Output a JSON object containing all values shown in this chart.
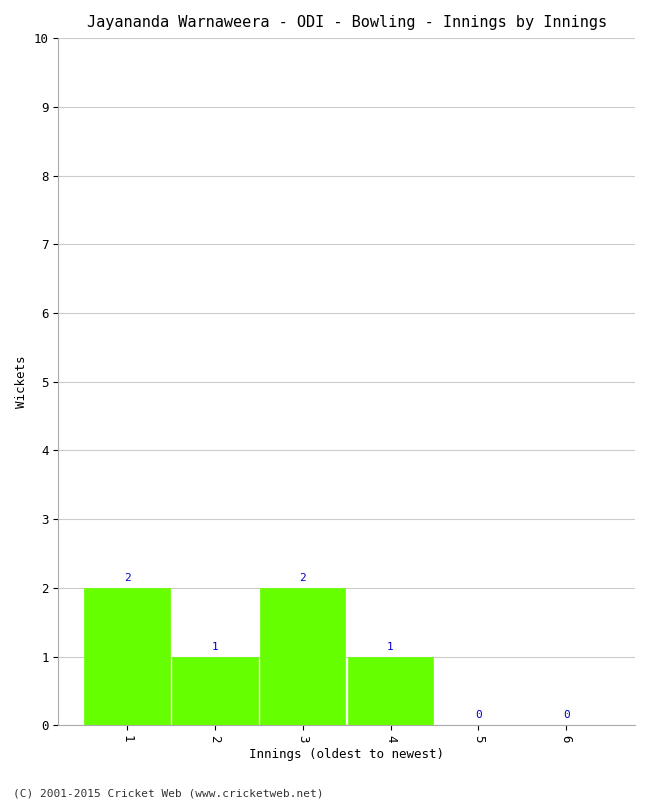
{
  "title": "Jayananda Warnaweera - ODI - Bowling - Innings by Innings",
  "xlabel": "Innings (oldest to newest)",
  "ylabel": "Wickets",
  "categories": [
    1,
    2,
    3,
    4,
    5,
    6
  ],
  "values": [
    2,
    1,
    2,
    1,
    0,
    0
  ],
  "bar_color": "#66ff00",
  "bar_edge_color": "#66ff00",
  "annotation_color": "#0000cc",
  "annotation_fontsize": 8,
  "ylim": [
    0,
    10
  ],
  "yticks": [
    0,
    1,
    2,
    3,
    4,
    5,
    6,
    7,
    8,
    9,
    10
  ],
  "xticks": [
    1,
    2,
    3,
    4,
    5,
    6
  ],
  "grid_color": "#cccccc",
  "background_color": "#ffffff",
  "plot_bg_color": "#ffffff",
  "title_fontsize": 11,
  "axis_label_fontsize": 9,
  "tick_fontsize": 9,
  "footer_text": "(C) 2001-2015 Cricket Web (www.cricketweb.net)",
  "footer_fontsize": 8,
  "bar_width": 0.97
}
